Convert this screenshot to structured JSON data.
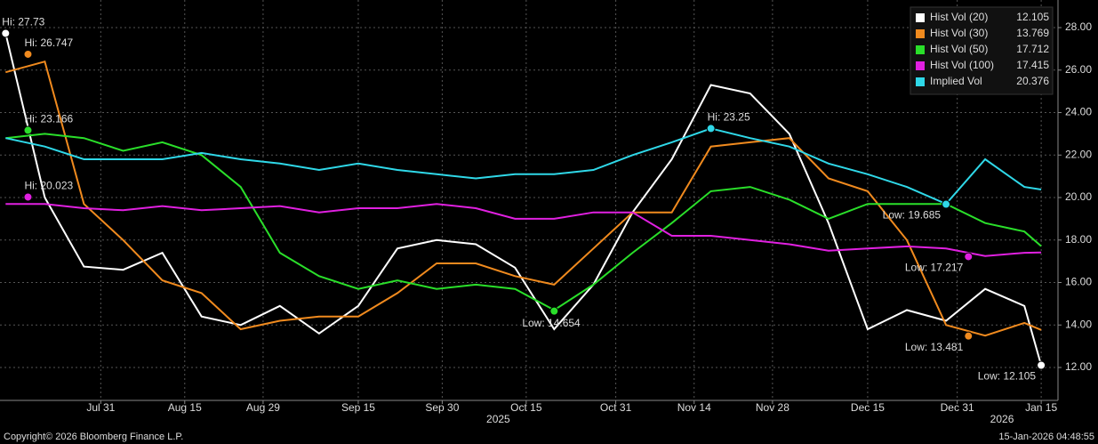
{
  "chart_data": {
    "type": "line",
    "x": [
      "2025-07-14",
      "2025-07-21",
      "2025-07-28",
      "2025-08-04",
      "2025-08-11",
      "2025-08-18",
      "2025-08-25",
      "2025-09-01",
      "2025-09-08",
      "2025-09-15",
      "2025-09-22",
      "2025-09-29",
      "2025-10-06",
      "2025-10-13",
      "2025-10-20",
      "2025-10-27",
      "2025-11-03",
      "2025-11-10",
      "2025-11-17",
      "2025-11-24",
      "2025-12-01",
      "2025-12-08",
      "2025-12-15",
      "2025-12-22",
      "2025-12-29",
      "2026-01-05",
      "2026-01-12",
      "2026-01-15"
    ],
    "series": [
      {
        "name": "Hist Vol (20)",
        "color": "#ffffff",
        "legend_value": 12.105,
        "values": [
          27.73,
          20.0,
          16.75,
          16.6,
          17.4,
          14.4,
          14.0,
          14.9,
          13.6,
          14.9,
          17.6,
          18.0,
          17.8,
          16.7,
          13.8,
          15.9,
          19.3,
          21.8,
          25.3,
          24.9,
          23.0,
          18.8,
          13.8,
          14.7,
          14.2,
          15.7,
          14.9,
          12.105
        ]
      },
      {
        "name": "Hist Vol (30)",
        "color": "#f08a1e",
        "legend_value": 13.769,
        "values": [
          25.9,
          26.4,
          19.7,
          18.0,
          16.1,
          15.5,
          13.8,
          14.2,
          14.4,
          14.4,
          15.5,
          16.9,
          16.9,
          16.3,
          15.9,
          17.6,
          19.3,
          19.3,
          22.4,
          22.6,
          22.8,
          20.9,
          20.3,
          18.0,
          14.0,
          13.5,
          14.1,
          13.769
        ]
      },
      {
        "name": "Hist Vol (50)",
        "color": "#2adf2a",
        "legend_value": 17.712,
        "values": [
          22.8,
          23.0,
          22.8,
          22.2,
          22.6,
          22.0,
          20.5,
          17.4,
          16.3,
          15.7,
          16.1,
          15.7,
          15.9,
          15.7,
          14.7,
          15.9,
          17.4,
          18.8,
          20.3,
          20.5,
          19.9,
          19.0,
          19.7,
          19.7,
          19.7,
          18.8,
          18.4,
          17.712
        ]
      },
      {
        "name": "Hist Vol (100)",
        "color": "#e020e0",
        "legend_value": 17.415,
        "values": [
          19.7,
          19.7,
          19.5,
          19.4,
          19.6,
          19.4,
          19.5,
          19.6,
          19.3,
          19.5,
          19.5,
          19.7,
          19.5,
          19.0,
          19.0,
          19.3,
          19.3,
          18.2,
          18.2,
          18.0,
          17.8,
          17.5,
          17.6,
          17.7,
          17.6,
          17.25,
          17.4,
          17.415
        ]
      },
      {
        "name": "Implied Vol",
        "color": "#2fd8e8",
        "legend_value": 20.376,
        "values": [
          22.8,
          22.4,
          21.8,
          21.8,
          21.8,
          22.1,
          21.8,
          21.6,
          21.3,
          21.6,
          21.3,
          21.1,
          20.9,
          21.1,
          21.1,
          21.3,
          22.0,
          22.6,
          23.25,
          22.8,
          22.4,
          21.6,
          21.1,
          20.5,
          19.7,
          21.8,
          20.5,
          20.376
        ]
      }
    ],
    "annotations": [
      {
        "label": "Hi: 27.73",
        "x": "2025-07-14",
        "value": 27.73,
        "color": "#ffffff"
      },
      {
        "label": "Hi: 26.747",
        "x": "2025-07-18",
        "value": 26.747,
        "color": "#f08a1e"
      },
      {
        "label": "Hi: 23.166",
        "x": "2025-07-18",
        "value": 23.166,
        "color": "#2adf2a"
      },
      {
        "label": "Hi: 20.023",
        "x": "2025-07-18",
        "value": 20.023,
        "color": "#e020e0"
      },
      {
        "label": "Hi: 23.25",
        "x": "2025-11-17",
        "value": 23.25,
        "color": "#2fd8e8"
      },
      {
        "label": "Low: 14.654",
        "x": "2025-10-20",
        "value": 14.654,
        "color": "#2adf2a"
      },
      {
        "label": "Low: 19.685",
        "x": "2025-12-29",
        "value": 19.685,
        "color": "#2fd8e8"
      },
      {
        "label": "Low: 17.217",
        "x": "2026-01-02",
        "value": 17.217,
        "color": "#e020e0"
      },
      {
        "label": "Low: 13.481",
        "x": "2026-01-02",
        "value": 13.481,
        "color": "#f08a1e"
      },
      {
        "label": "Low: 12.105",
        "x": "2026-01-15",
        "value": 12.105,
        "color": "#ffffff"
      }
    ],
    "xlim": [
      "2025-07-13",
      "2026-01-18"
    ],
    "xticks": [
      {
        "value": "2025-07-31",
        "label": "Jul 31"
      },
      {
        "value": "2025-08-15",
        "label": "Aug 15"
      },
      {
        "value": "2025-08-29",
        "label": "Aug 29"
      },
      {
        "value": "2025-09-15",
        "label": "Sep 15"
      },
      {
        "value": "2025-09-30",
        "label": "Sep 30"
      },
      {
        "value": "2025-10-15",
        "label": "Oct 15"
      },
      {
        "value": "2025-10-31",
        "label": "Oct 31"
      },
      {
        "value": "2025-11-14",
        "label": "Nov 14"
      },
      {
        "value": "2025-11-28",
        "label": "Nov 28"
      },
      {
        "value": "2025-12-15",
        "label": "Dec 15"
      },
      {
        "value": "2025-12-31",
        "label": "Dec 31"
      },
      {
        "value": "2026-01-15",
        "label": "Jan 15"
      }
    ],
    "x_year_labels": [
      {
        "value": "2025-10-10",
        "label": "2025"
      },
      {
        "value": "2026-01-08",
        "label": "2026"
      }
    ],
    "ylim": [
      10.45,
      29.3
    ],
    "yticks": [
      {
        "value": 12,
        "label": "12.00"
      },
      {
        "value": 14,
        "label": "14.00"
      },
      {
        "value": 16,
        "label": "16.00"
      },
      {
        "value": 18,
        "label": "18.00"
      },
      {
        "value": 20,
        "label": "20.00"
      },
      {
        "value": 22,
        "label": "22.00"
      },
      {
        "value": 24,
        "label": "24.00"
      },
      {
        "value": 26,
        "label": "26.00"
      },
      {
        "value": 28,
        "label": "28.00"
      }
    ],
    "grid": true,
    "legend": "top-right",
    "footer_left": "Copyright© 2026 Bloomberg Finance L.P.",
    "footer_right": "15-Jan-2026 04:48:55"
  }
}
